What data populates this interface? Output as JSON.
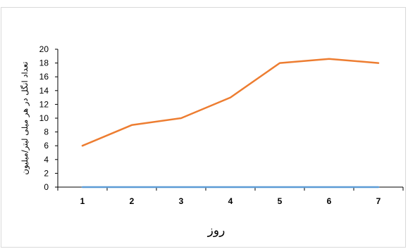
{
  "chart_data": {
    "type": "line",
    "title": "",
    "xlabel": "روز",
    "ylabel": "تعداد انگل در هر میلی لیتر/میلیون",
    "categories": [
      "1",
      "2",
      "3",
      "4",
      "5",
      "6",
      "7"
    ],
    "ylim": [
      0,
      20
    ],
    "yticks": [
      0,
      2,
      4,
      6,
      8,
      10,
      12,
      14,
      16,
      18,
      20
    ],
    "grid": false,
    "legend": "none",
    "series": [
      {
        "color": "#ed7d31",
        "values": [
          6,
          9,
          10,
          13,
          18,
          18.6,
          18
        ]
      },
      {
        "color": "#5b9bd5",
        "values": [
          0,
          0,
          0,
          0,
          0,
          0,
          0
        ]
      }
    ]
  }
}
